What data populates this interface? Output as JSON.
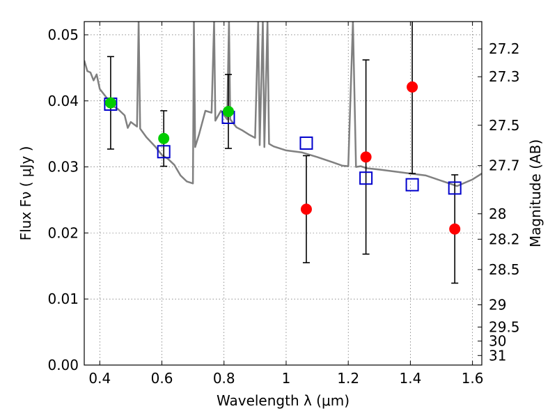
{
  "chart_data": {
    "type": "scatter",
    "xlabel": "Wavelength  λ (μm)",
    "ylabel": "Flux  Fν  ( μJy )",
    "ylabel_right": "Magnitude (AB)",
    "xlim": [
      0.35,
      1.63
    ],
    "ylim": [
      0.0,
      0.052
    ],
    "grid": true,
    "x_ticks": [
      "0.4",
      "0.6",
      "0.8",
      "1",
      "1.2",
      "1.4",
      "1.6"
    ],
    "x_tick_values": [
      0.4,
      0.6,
      0.8,
      1.0,
      1.2,
      1.4,
      1.6
    ],
    "y_ticks": [
      "0.00",
      "0.01",
      "0.02",
      "0.03",
      "0.04",
      "0.05"
    ],
    "y_tick_values": [
      0.0,
      0.01,
      0.02,
      0.03,
      0.04,
      0.05
    ],
    "right_ticks": [
      "27.2",
      "27.3",
      "27.5",
      "27.7",
      "28",
      "28.2",
      "28.5",
      "29",
      "29.5",
      "30",
      "31"
    ],
    "right_tick_values": [
      27.2,
      27.3,
      27.5,
      27.7,
      28.0,
      28.2,
      28.5,
      29.0,
      29.5,
      30.0,
      31.0
    ],
    "series": [
      {
        "marker": "circle",
        "color": "#00cc00",
        "points": [
          {
            "x": 0.435,
            "y": 0.0397,
            "err": 0.007
          },
          {
            "x": 0.606,
            "y": 0.0343,
            "err": 0.0042
          },
          {
            "x": 0.814,
            "y": 0.0384,
            "err": 0.0056
          }
        ]
      },
      {
        "marker": "circle",
        "color": "#ff0000",
        "points": [
          {
            "x": 1.065,
            "y": 0.0236,
            "err": 0.0081
          },
          {
            "x": 1.257,
            "y": 0.0315,
            "err": 0.0147
          },
          {
            "x": 1.406,
            "y": 0.0421,
            "err": 0.0131
          },
          {
            "x": 1.543,
            "y": 0.0206,
            "err": 0.0082
          }
        ]
      },
      {
        "marker": "open-square",
        "color": "#0000cc",
        "points": [
          {
            "x": 0.435,
            "y": 0.0395
          },
          {
            "x": 0.606,
            "y": 0.0323
          },
          {
            "x": 0.814,
            "y": 0.0375
          },
          {
            "x": 1.065,
            "y": 0.0336
          },
          {
            "x": 1.257,
            "y": 0.0283
          },
          {
            "x": 1.406,
            "y": 0.0273
          },
          {
            "x": 1.543,
            "y": 0.0268
          }
        ]
      },
      {
        "type": "line",
        "color": "#808080",
        "points": [
          [
            0.35,
            0.0461
          ],
          [
            0.36,
            0.0445
          ],
          [
            0.37,
            0.0443
          ],
          [
            0.38,
            0.0431
          ],
          [
            0.39,
            0.044
          ],
          [
            0.4,
            0.0418
          ],
          [
            0.42,
            0.0406
          ],
          [
            0.44,
            0.0393
          ],
          [
            0.46,
            0.0387
          ],
          [
            0.48,
            0.0378
          ],
          [
            0.49,
            0.0359
          ],
          [
            0.5,
            0.0368
          ],
          [
            0.52,
            0.0361
          ],
          [
            0.525,
            0.052
          ],
          [
            0.53,
            0.0358
          ],
          [
            0.55,
            0.0345
          ],
          [
            0.58,
            0.033
          ],
          [
            0.6,
            0.0318
          ],
          [
            0.62,
            0.0312
          ],
          [
            0.64,
            0.0303
          ],
          [
            0.66,
            0.0287
          ],
          [
            0.68,
            0.0278
          ],
          [
            0.7,
            0.0275
          ],
          [
            0.703,
            0.052
          ],
          [
            0.707,
            0.033
          ],
          [
            0.72,
            0.035
          ],
          [
            0.74,
            0.0385
          ],
          [
            0.76,
            0.0382
          ],
          [
            0.768,
            0.052
          ],
          [
            0.772,
            0.037
          ],
          [
            0.79,
            0.0385
          ],
          [
            0.81,
            0.0372
          ],
          [
            0.816,
            0.052
          ],
          [
            0.82,
            0.0372
          ],
          [
            0.84,
            0.036
          ],
          [
            0.86,
            0.0355
          ],
          [
            0.88,
            0.0349
          ],
          [
            0.9,
            0.0344
          ],
          [
            0.91,
            0.052
          ],
          [
            0.915,
            0.0333
          ],
          [
            0.925,
            0.052
          ],
          [
            0.93,
            0.033
          ],
          [
            0.94,
            0.052
          ],
          [
            0.945,
            0.0335
          ],
          [
            0.96,
            0.0331
          ],
          [
            1.0,
            0.0325
          ],
          [
            1.05,
            0.0322
          ],
          [
            1.1,
            0.0315
          ],
          [
            1.15,
            0.0307
          ],
          [
            1.18,
            0.0302
          ],
          [
            1.2,
            0.0301
          ],
          [
            1.215,
            0.052
          ],
          [
            1.225,
            0.03
          ],
          [
            1.24,
            0.0301
          ],
          [
            1.26,
            0.0298
          ],
          [
            1.3,
            0.0296
          ],
          [
            1.35,
            0.0293
          ],
          [
            1.4,
            0.029
          ],
          [
            1.45,
            0.0287
          ],
          [
            1.5,
            0.0279
          ],
          [
            1.55,
            0.0271
          ],
          [
            1.6,
            0.0281
          ],
          [
            1.63,
            0.029
          ]
        ]
      }
    ]
  }
}
